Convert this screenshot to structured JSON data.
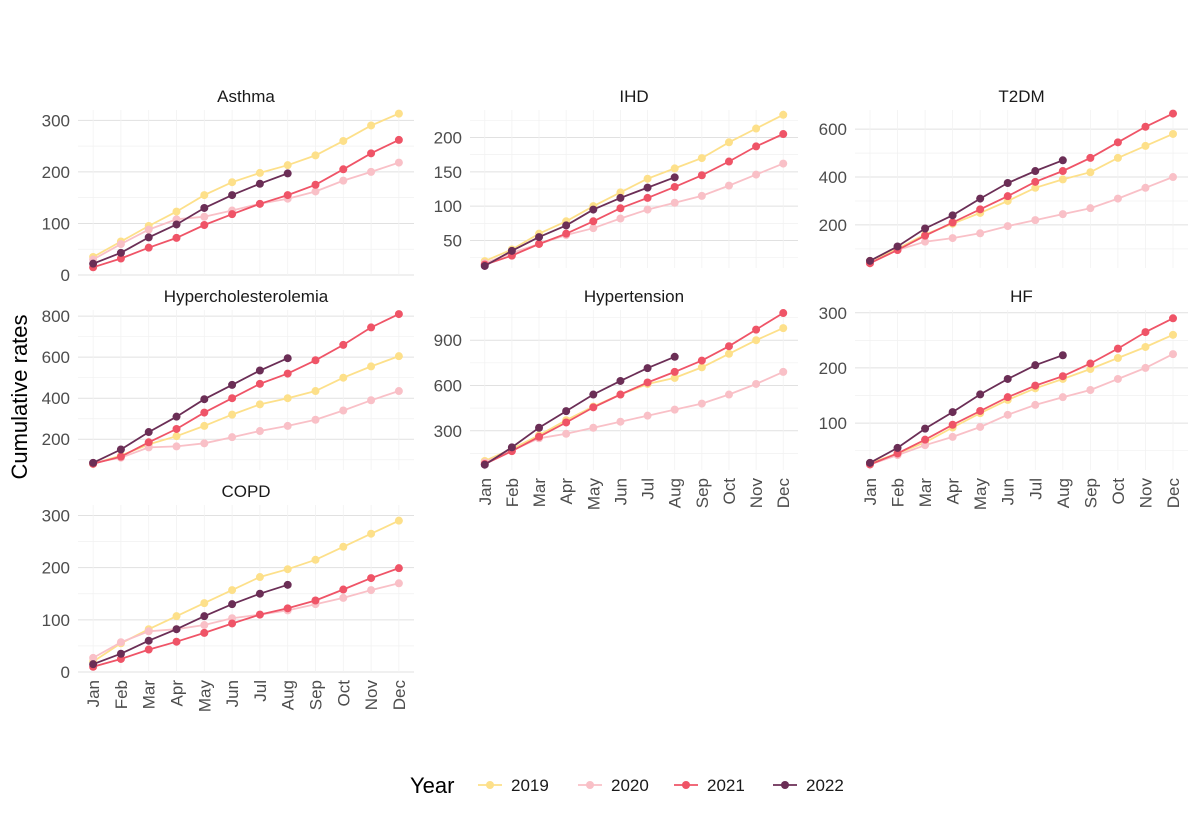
{
  "ylabel": "Cumulative rates",
  "legend": {
    "title": "Year",
    "entries": [
      "2019",
      "2020",
      "2021",
      "2022"
    ],
    "colors": [
      "#fde08a",
      "#f9c0c7",
      "#ef5467",
      "#6b2e56"
    ],
    "placement": "bottom"
  },
  "months": [
    "Jan",
    "Feb",
    "Mar",
    "Apr",
    "May",
    "Jun",
    "Jul",
    "Aug",
    "Sep",
    "Oct",
    "Nov",
    "Dec"
  ],
  "chart_data": [
    {
      "type": "line",
      "title": "Asthma",
      "ylim": [
        0,
        320
      ],
      "yticks": [
        0,
        100,
        200,
        300
      ],
      "series": [
        {
          "name": "2019",
          "values": [
            35,
            65,
            95,
            123,
            155,
            180,
            198,
            213,
            232,
            260,
            290,
            313
          ]
        },
        {
          "name": "2020",
          "values": [
            30,
            60,
            88,
            108,
            113,
            125,
            138,
            148,
            162,
            183,
            200,
            218
          ]
        },
        {
          "name": "2021",
          "values": [
            15,
            32,
            53,
            72,
            97,
            118,
            138,
            155,
            175,
            205,
            236,
            262
          ]
        },
        {
          "name": "2022",
          "values": [
            22,
            43,
            73,
            98,
            130,
            155,
            177,
            197
          ]
        }
      ]
    },
    {
      "type": "line",
      "title": "IHD",
      "ylim": [
        10,
        240
      ],
      "yticks": [
        50,
        100,
        150,
        200
      ],
      "series": [
        {
          "name": "2019",
          "values": [
            20,
            37,
            60,
            78,
            100,
            120,
            140,
            155,
            170,
            193,
            213,
            233
          ]
        },
        {
          "name": "2020",
          "values": [
            17,
            32,
            45,
            58,
            68,
            82,
            95,
            105,
            115,
            130,
            146,
            162
          ]
        },
        {
          "name": "2021",
          "values": [
            15,
            28,
            45,
            60,
            78,
            97,
            112,
            128,
            145,
            165,
            187,
            205
          ]
        },
        {
          "name": "2022",
          "values": [
            13,
            35,
            55,
            72,
            95,
            112,
            127,
            142
          ]
        }
      ]
    },
    {
      "type": "line",
      "title": "T2DM",
      "ylim": [
        20,
        680
      ],
      "yticks": [
        200,
        400,
        600
      ],
      "series": [
        {
          "name": "2019",
          "values": [
            50,
            100,
            160,
            205,
            250,
            300,
            355,
            390,
            420,
            480,
            530,
            580
          ]
        },
        {
          "name": "2020",
          "values": [
            40,
            95,
            130,
            145,
            165,
            195,
            220,
            245,
            270,
            310,
            355,
            400
          ]
        },
        {
          "name": "2021",
          "values": [
            40,
            95,
            155,
            210,
            265,
            320,
            380,
            425,
            480,
            545,
            610,
            665
          ]
        },
        {
          "name": "2022",
          "values": [
            50,
            110,
            185,
            240,
            310,
            375,
            425,
            470
          ]
        }
      ]
    },
    {
      "type": "line",
      "title": "Hypercholesterolemia",
      "ylim": [
        50,
        830
      ],
      "yticks": [
        200,
        400,
        600,
        800
      ],
      "series": [
        {
          "name": "2019",
          "values": [
            80,
            120,
            175,
            215,
            265,
            320,
            370,
            400,
            435,
            500,
            555,
            605
          ]
        },
        {
          "name": "2020",
          "values": [
            85,
            110,
            160,
            165,
            180,
            210,
            240,
            265,
            295,
            340,
            390,
            435
          ]
        },
        {
          "name": "2021",
          "values": [
            80,
            115,
            185,
            250,
            330,
            400,
            470,
            520,
            585,
            660,
            745,
            810
          ]
        },
        {
          "name": "2022",
          "values": [
            85,
            150,
            235,
            310,
            395,
            465,
            535,
            595
          ]
        }
      ]
    },
    {
      "type": "line",
      "title": "Hypertension",
      "ylim": [
        40,
        1100
      ],
      "yticks": [
        300,
        600,
        900
      ],
      "series": [
        {
          "name": "2019",
          "values": [
            100,
            180,
            270,
            370,
            460,
            540,
            610,
            650,
            720,
            810,
            900,
            980
          ]
        },
        {
          "name": "2020",
          "values": [
            90,
            170,
            250,
            280,
            320,
            360,
            400,
            440,
            480,
            540,
            610,
            690
          ]
        },
        {
          "name": "2021",
          "values": [
            80,
            165,
            260,
            355,
            455,
            540,
            620,
            690,
            765,
            860,
            970,
            1080
          ]
        },
        {
          "name": "2022",
          "values": [
            75,
            190,
            320,
            430,
            540,
            630,
            715,
            790
          ]
        }
      ]
    },
    {
      "type": "line",
      "title": "HF",
      "ylim": [
        15,
        305
      ],
      "yticks": [
        100,
        200,
        300
      ],
      "series": [
        {
          "name": "2019",
          "values": [
            27,
            45,
            65,
            92,
            118,
            142,
            163,
            180,
            198,
            218,
            238,
            260
          ]
        },
        {
          "name": "2020",
          "values": [
            25,
            42,
            60,
            75,
            93,
            115,
            133,
            147,
            160,
            180,
            200,
            225
          ]
        },
        {
          "name": "2021",
          "values": [
            25,
            45,
            70,
            97,
            122,
            147,
            168,
            185,
            208,
            235,
            265,
            290
          ]
        },
        {
          "name": "2022",
          "values": [
            28,
            55,
            90,
            120,
            152,
            180,
            205,
            223
          ]
        }
      ]
    },
    {
      "type": "line",
      "title": "COPD",
      "ylim": [
        0,
        320
      ],
      "yticks": [
        0,
        100,
        200,
        300
      ],
      "series": [
        {
          "name": "2019",
          "values": [
            20,
            55,
            82,
            107,
            132,
            157,
            182,
            197,
            215,
            240,
            265,
            290
          ]
        },
        {
          "name": "2020",
          "values": [
            27,
            57,
            78,
            82,
            90,
            103,
            110,
            118,
            130,
            142,
            157,
            170
          ]
        },
        {
          "name": "2021",
          "values": [
            10,
            25,
            43,
            58,
            75,
            93,
            110,
            122,
            137,
            158,
            180,
            199
          ]
        },
        {
          "name": "2022",
          "values": [
            15,
            35,
            60,
            82,
            107,
            130,
            150,
            167
          ]
        }
      ]
    }
  ]
}
